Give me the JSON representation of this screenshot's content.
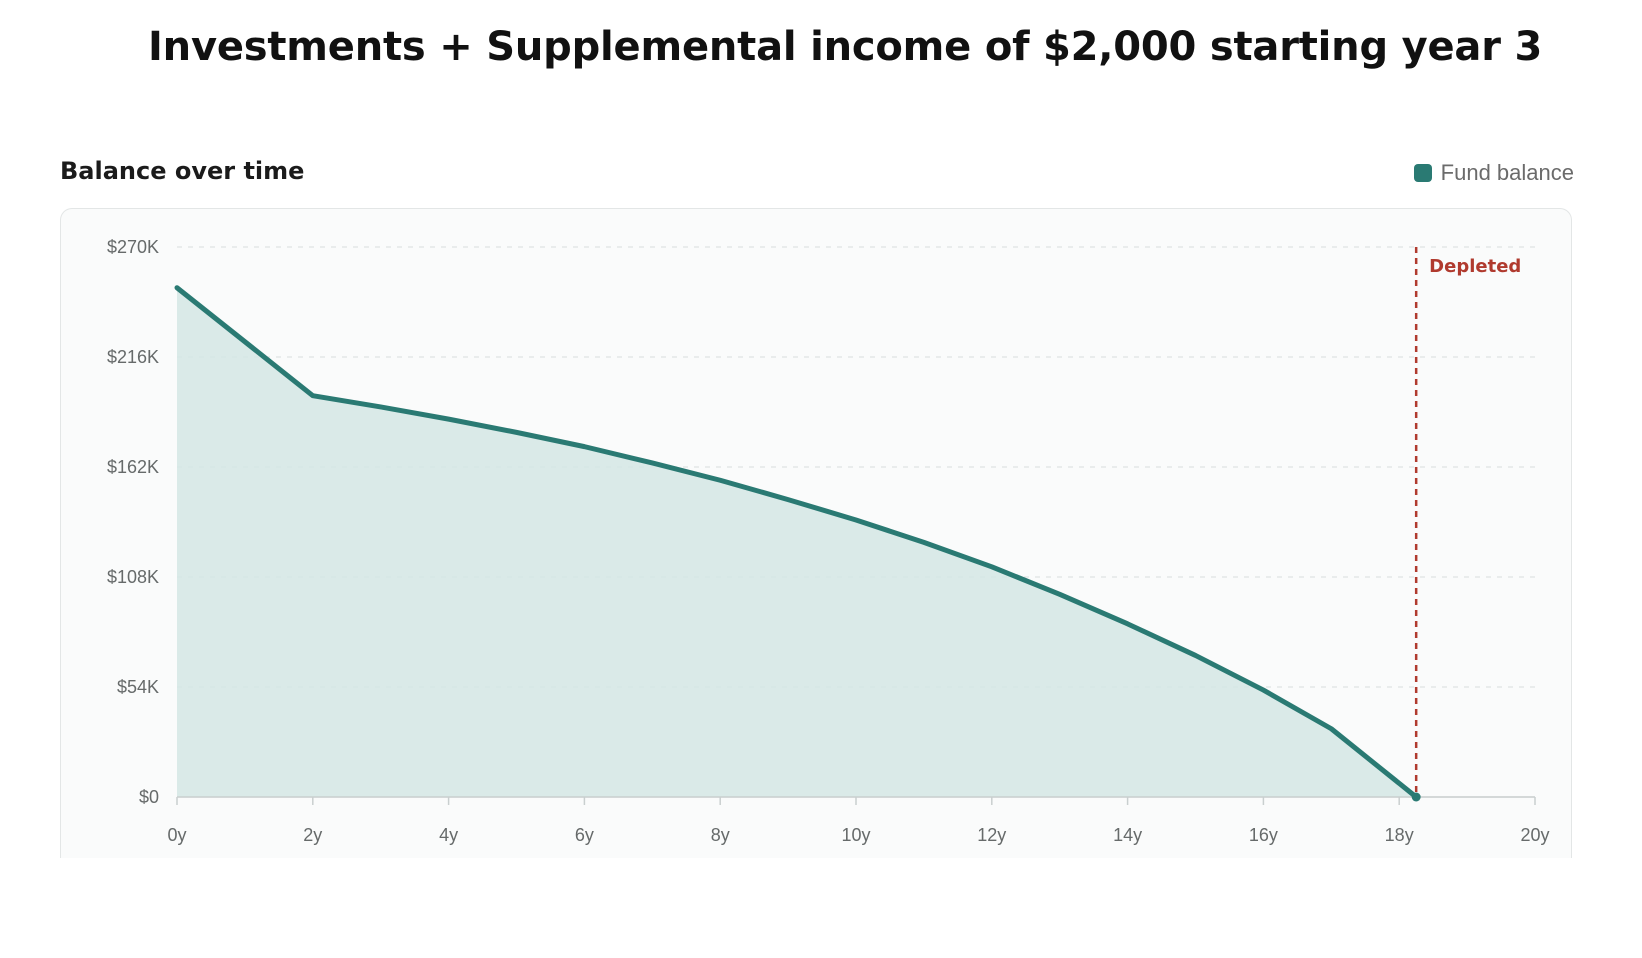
{
  "page": {
    "title": "Investments + Supplemental income of $2,000 starting year 3"
  },
  "card": {
    "heading": "Balance over time",
    "legend_label": "Fund balance"
  },
  "chart_data": {
    "type": "area",
    "title": "Balance over time",
    "xlabel": "",
    "ylabel": "",
    "xlim": [
      0,
      20
    ],
    "ylim": [
      0,
      270000
    ],
    "x_ticks": [
      0,
      2,
      4,
      6,
      8,
      10,
      12,
      14,
      16,
      18,
      20
    ],
    "x_tick_labels": [
      "0y",
      "2y",
      "4y",
      "6y",
      "8y",
      "10y",
      "12y",
      "14y",
      "16y",
      "18y",
      "20y"
    ],
    "y_ticks": [
      0,
      54000,
      108000,
      162000,
      216000,
      270000
    ],
    "y_tick_labels": [
      "$0",
      "$54K",
      "$108K",
      "$162K",
      "$216K",
      "$270K"
    ],
    "grid": true,
    "legend_position": "top-right",
    "series": [
      {
        "name": "Fund balance",
        "color": "#2a7a73",
        "fill_color": "#d4e6e4",
        "x": [
          0,
          2,
          3,
          4,
          5,
          6,
          7,
          8,
          9,
          10,
          11,
          12,
          13,
          14,
          15,
          16,
          17,
          18.25
        ],
        "values": [
          250000,
          197000,
          191500,
          185500,
          179000,
          172000,
          164000,
          155500,
          146000,
          136000,
          125000,
          113000,
          99500,
          85000,
          69500,
          52500,
          33500,
          0
        ]
      }
    ],
    "annotations": [
      {
        "type": "vline",
        "x": 18.25,
        "label": "Depleted",
        "color": "#b03a2e"
      }
    ]
  }
}
